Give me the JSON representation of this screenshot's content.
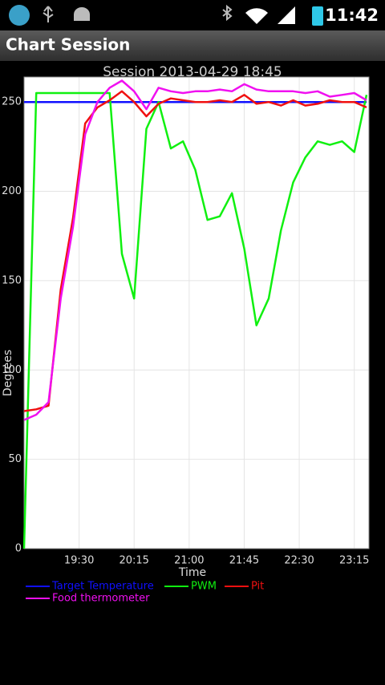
{
  "status_bar": {
    "time": "11:42"
  },
  "app_bar": {
    "title": "Chart Session"
  },
  "chart_data": {
    "type": "line",
    "title": "Session 2013-04-29 18:45",
    "x_label": "Time",
    "y_label": "Degrees",
    "x": [
      1125,
      1135,
      1145,
      1155,
      1165,
      1175,
      1185,
      1195,
      1205,
      1215,
      1225,
      1235,
      1245,
      1255,
      1265,
      1275,
      1285,
      1295,
      1305,
      1315,
      1325,
      1335,
      1345,
      1355,
      1365,
      1375,
      1385,
      1395,
      1405
    ],
    "series": [
      {
        "name": "Target Temperature",
        "color": "#1010ff",
        "values": [
          250,
          250,
          250,
          250,
          250,
          250,
          250,
          250,
          250,
          250,
          250,
          250,
          250,
          250,
          250,
          250,
          250,
          250,
          250,
          250,
          250,
          250,
          250,
          250,
          250,
          250,
          250,
          250,
          250
        ]
      },
      {
        "name": "PWM",
        "color": "#10f010",
        "values": [
          0,
          255,
          255,
          255,
          255,
          255,
          255,
          255,
          165,
          140,
          235,
          250,
          224,
          228,
          212,
          184,
          186,
          199,
          168,
          125,
          140,
          178,
          205,
          219,
          228,
          226,
          228,
          222,
          254
        ]
      },
      {
        "name": "Pit",
        "color": "#f01010",
        "values": [
          77,
          78,
          80,
          145,
          185,
          238,
          247,
          251,
          256,
          250,
          242,
          249,
          252,
          251,
          250,
          250,
          251,
          250,
          254,
          249,
          250,
          248,
          251,
          248,
          249,
          251,
          250,
          250,
          247
        ]
      },
      {
        "name": "Food thermometer",
        "color": "#f010f0",
        "values": [
          72,
          75,
          82,
          140,
          180,
          232,
          250,
          258,
          262,
          256,
          246,
          258,
          256,
          255,
          256,
          256,
          257,
          256,
          260,
          257,
          256,
          256,
          256,
          255,
          256,
          253,
          254,
          255,
          251
        ]
      }
    ],
    "xlim": [
      1125,
      1407
    ],
    "ylim": [
      0,
      264
    ],
    "xticks": [
      {
        "value": 1170,
        "label": "19:30"
      },
      {
        "value": 1215,
        "label": "20:15"
      },
      {
        "value": 1260,
        "label": "21:00"
      },
      {
        "value": 1305,
        "label": "21:45"
      },
      {
        "value": 1350,
        "label": "22:30"
      },
      {
        "value": 1395,
        "label": "23:15"
      }
    ],
    "yticks": [
      0,
      50,
      100,
      150,
      200,
      250
    ],
    "grid": true
  }
}
